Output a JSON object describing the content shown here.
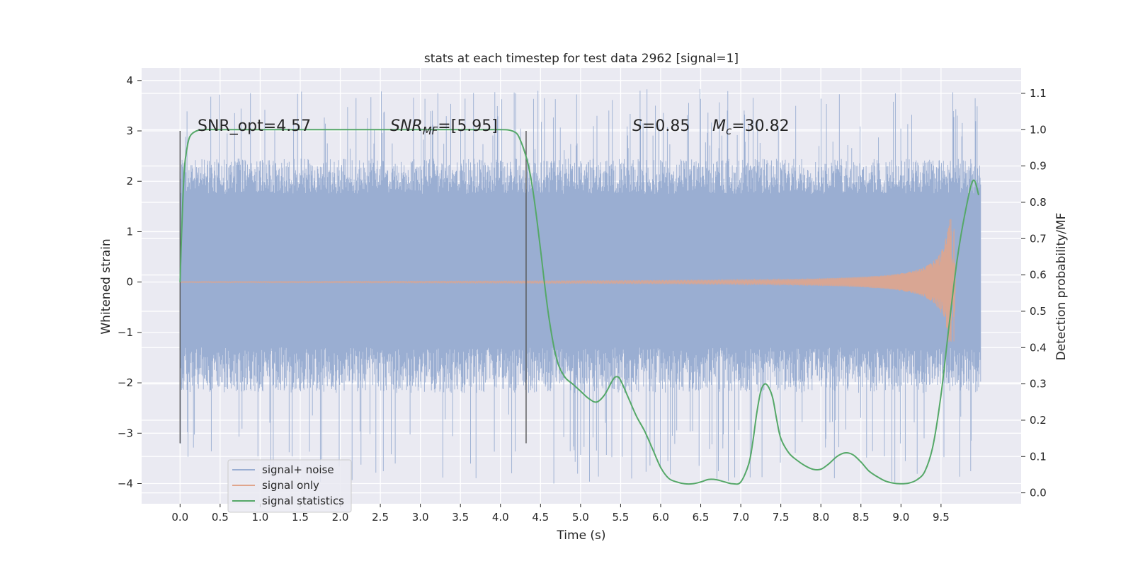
{
  "chart_data": {
    "type": "line",
    "title": "stats at each timestep for test data 2962 [signal=1]",
    "xlabel": "Time (s)",
    "ylabel": "Whitened strain",
    "y2label": "Detection probability/MF",
    "xlim": [
      -0.48,
      10.5
    ],
    "ylim": [
      -4.4,
      4.25
    ],
    "y2lim": [
      -0.03,
      1.17
    ],
    "x_ticks": [
      0.0,
      0.5,
      1.0,
      1.5,
      2.0,
      2.5,
      3.0,
      3.5,
      4.0,
      4.5,
      5.0,
      5.5,
      6.0,
      6.5,
      7.0,
      7.5,
      8.0,
      8.5,
      9.0,
      9.5
    ],
    "x_tick_labels": [
      "0.0",
      "0.5",
      "1.0",
      "1.5",
      "2.0",
      "2.5",
      "3.0",
      "3.5",
      "4.0",
      "4.5",
      "5.0",
      "5.5",
      "6.0",
      "6.5",
      "7.0",
      "7.5",
      "8.0",
      "8.5",
      "9.0",
      "9.5"
    ],
    "y_ticks": [
      -4,
      -3,
      -2,
      -1,
      0,
      1,
      2,
      3,
      4
    ],
    "y_tick_labels": [
      "−4",
      "−3",
      "−2",
      "−1",
      "0",
      "1",
      "2",
      "3",
      "4"
    ],
    "y2_ticks": [
      0.0,
      0.1,
      0.2,
      0.3,
      0.4,
      0.5,
      0.6,
      0.7,
      0.8,
      0.9,
      1.0,
      1.1
    ],
    "y2_tick_labels": [
      "0.0",
      "0.1",
      "0.2",
      "0.3",
      "0.4",
      "0.5",
      "0.6",
      "0.7",
      "0.8",
      "0.9",
      "1.0",
      "1.1"
    ],
    "grid": true,
    "legend_position": "lower-left",
    "colors": {
      "background": "#eaeaf2",
      "grid": "#ffffff",
      "noise": "#9aaed2",
      "signal": "#e0a58c",
      "stat": "#55a868",
      "vline": "#555555"
    },
    "series": [
      {
        "name": "signal+ noise",
        "axis": "left",
        "style": "dense-noise",
        "x_range": [
          0.0,
          10.0
        ],
        "core_amplitude": [
          -1.3,
          1.75
        ],
        "envelope": [
          -4.0,
          3.85
        ]
      },
      {
        "name": "signal only",
        "axis": "left",
        "style": "chirp",
        "x_range": [
          0.0,
          9.68
        ],
        "peak_time": 9.66,
        "peak_amplitude": 1.25
      },
      {
        "name": "signal statistics",
        "axis": "right",
        "x": [
          0.0,
          0.02,
          0.05,
          0.08,
          0.12,
          0.2,
          0.3,
          0.5,
          1.0,
          2.0,
          3.0,
          3.5,
          3.9,
          4.1,
          4.2,
          4.25,
          4.3,
          4.35,
          4.4,
          4.45,
          4.5,
          4.6,
          4.7,
          4.8,
          4.9,
          5.0,
          5.1,
          5.2,
          5.3,
          5.4,
          5.45,
          5.5,
          5.6,
          5.7,
          5.8,
          5.9,
          6.0,
          6.1,
          6.2,
          6.3,
          6.4,
          6.5,
          6.6,
          6.7,
          6.8,
          6.9,
          7.0,
          7.1,
          7.15,
          7.2,
          7.25,
          7.3,
          7.35,
          7.4,
          7.45,
          7.5,
          7.6,
          7.7,
          7.8,
          7.9,
          8.0,
          8.1,
          8.2,
          8.3,
          8.4,
          8.5,
          8.6,
          8.7,
          8.8,
          8.9,
          9.0,
          9.1,
          9.2,
          9.3,
          9.4,
          9.5,
          9.6,
          9.7,
          9.8,
          9.9,
          9.97
        ],
        "y": [
          0.58,
          0.72,
          0.88,
          0.94,
          0.98,
          0.996,
          1.0,
          1.0,
          1.0,
          1.0,
          1.0,
          1.0,
          1.0,
          0.999,
          0.99,
          0.97,
          0.94,
          0.9,
          0.84,
          0.76,
          0.67,
          0.49,
          0.37,
          0.32,
          0.3,
          0.28,
          0.26,
          0.25,
          0.27,
          0.31,
          0.32,
          0.31,
          0.26,
          0.21,
          0.17,
          0.12,
          0.07,
          0.04,
          0.03,
          0.025,
          0.025,
          0.03,
          0.037,
          0.036,
          0.03,
          0.025,
          0.03,
          0.08,
          0.14,
          0.22,
          0.28,
          0.3,
          0.29,
          0.26,
          0.2,
          0.15,
          0.11,
          0.09,
          0.075,
          0.065,
          0.065,
          0.08,
          0.1,
          0.11,
          0.105,
          0.085,
          0.06,
          0.045,
          0.033,
          0.027,
          0.025,
          0.027,
          0.036,
          0.06,
          0.13,
          0.27,
          0.46,
          0.64,
          0.77,
          0.86,
          0.82
        ]
      }
    ],
    "vertical_lines": [
      {
        "x": 0.0,
        "y_range": [
          -3.2,
          3.0
        ]
      },
      {
        "x": 4.32,
        "y_range": [
          -3.2,
          3.0
        ]
      }
    ],
    "annotations": {
      "snr_opt": "SNR_opt=4.57",
      "snr_mf_base": "SNR",
      "snr_mf_sub": "MF",
      "snr_mf_value": "=[5.95]",
      "s_base": "S",
      "s_value": "=0.85",
      "mc_base": "M",
      "mc_sub": "c",
      "mc_value": "=30.82"
    }
  }
}
